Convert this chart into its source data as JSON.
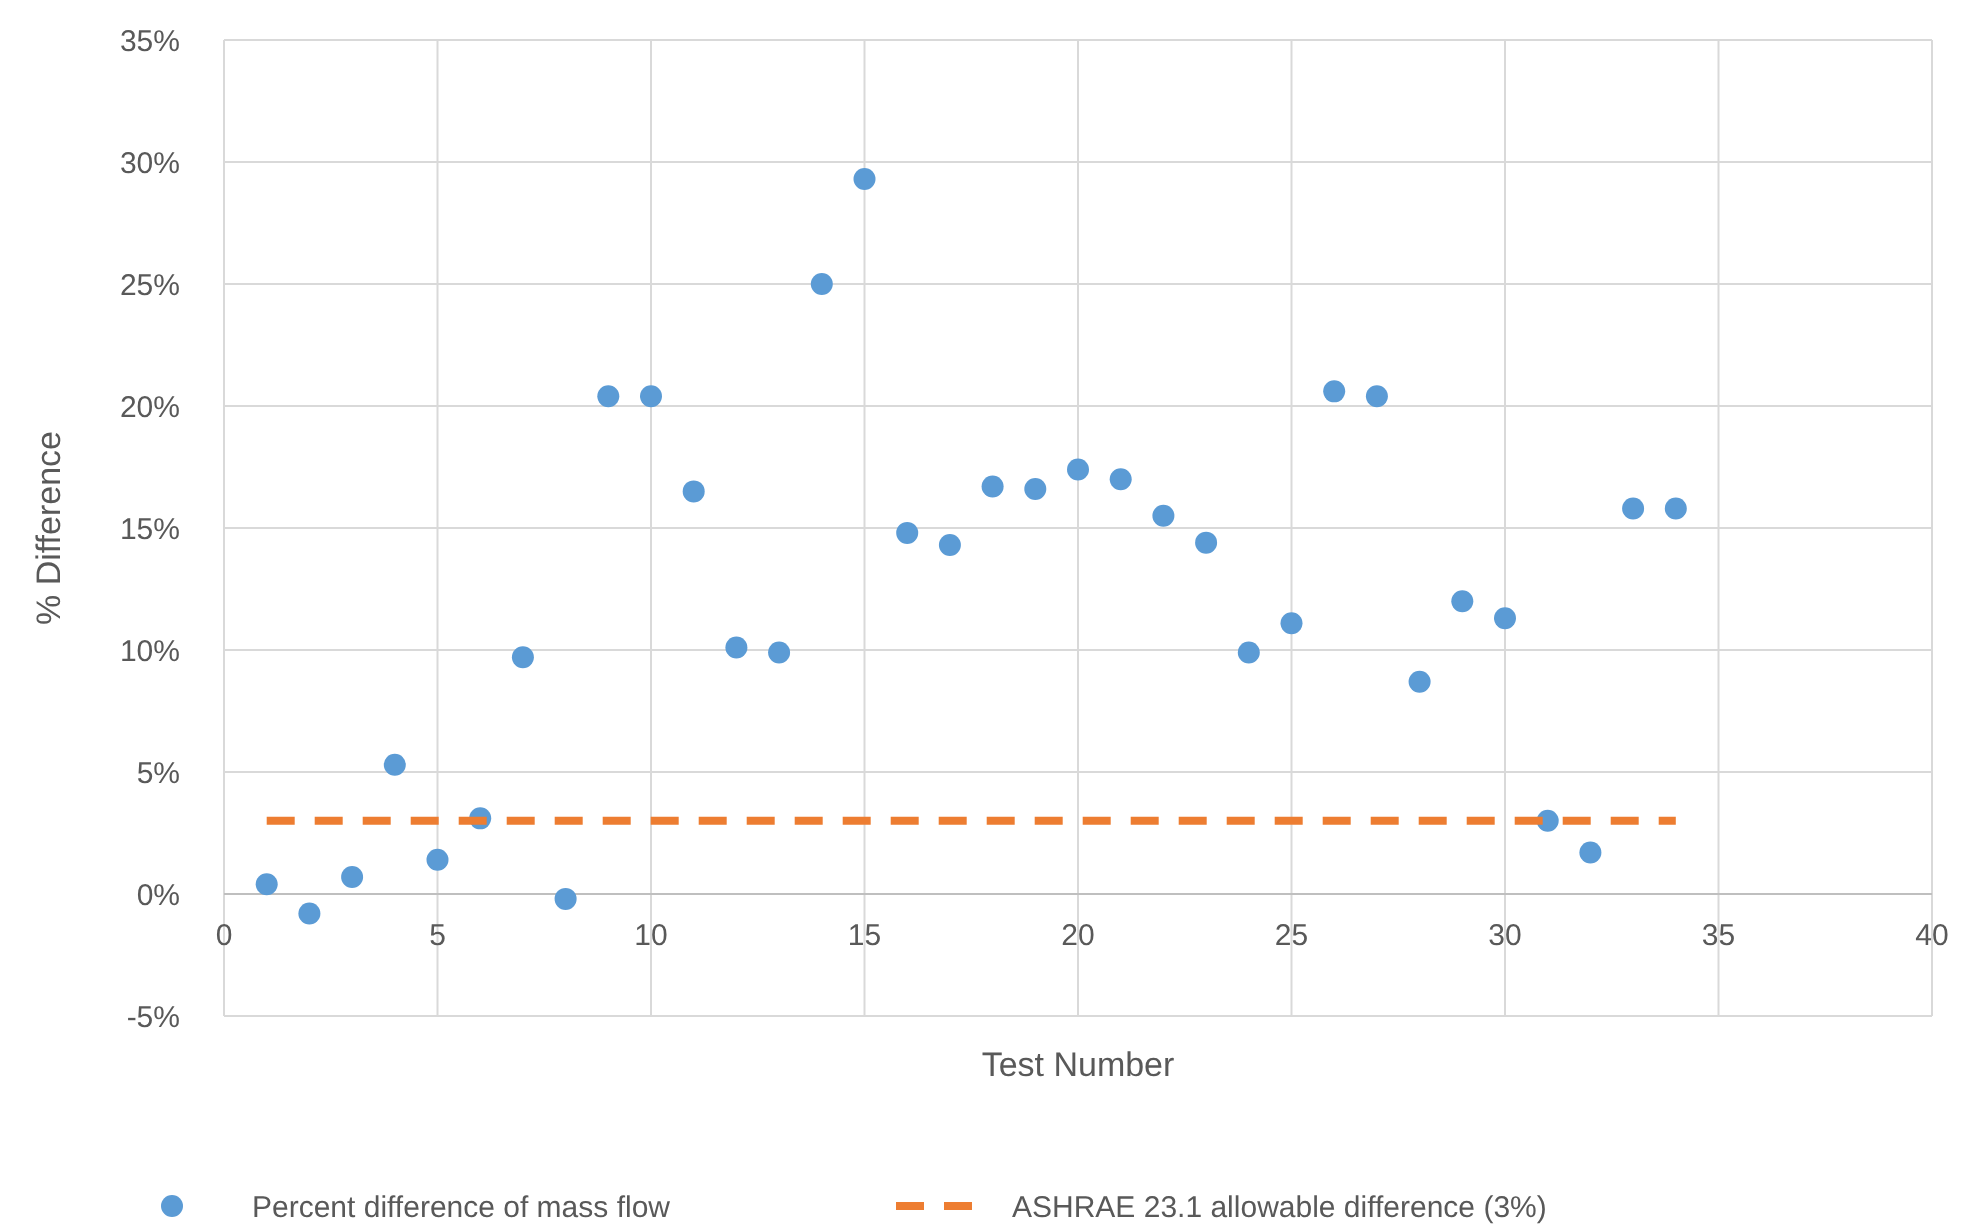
{
  "chart_data": {
    "type": "scatter",
    "xlabel": "Test Number",
    "ylabel": "% Difference",
    "xlim": [
      0,
      40
    ],
    "xticks": [
      0,
      5,
      10,
      15,
      20,
      25,
      30,
      35,
      40
    ],
    "ylim": [
      -5,
      35
    ],
    "yticks": [
      {
        "value": -5,
        "label": "-5%"
      },
      {
        "value": 0,
        "label": "0%"
      },
      {
        "value": 5,
        "label": "5%"
      },
      {
        "value": 10,
        "label": "10%"
      },
      {
        "value": 15,
        "label": "15%"
      },
      {
        "value": 20,
        "label": "20%"
      },
      {
        "value": 25,
        "label": "25%"
      },
      {
        "value": 30,
        "label": "30%"
      },
      {
        "value": 35,
        "label": "35%"
      }
    ],
    "grid": true,
    "legend": "bottom",
    "series": [
      {
        "name": "Percent difference of mass flow",
        "marker": "circle",
        "color": "#5b9bd5",
        "x": [
          1,
          2,
          3,
          4,
          5,
          6,
          7,
          8,
          9,
          10,
          11,
          12,
          13,
          14,
          15,
          16,
          17,
          18,
          19,
          20,
          21,
          22,
          23,
          24,
          25,
          26,
          27,
          28,
          29,
          30,
          31,
          32,
          33,
          34
        ],
        "values": [
          0.4,
          -0.8,
          0.7,
          5.3,
          1.4,
          3.1,
          9.7,
          -0.2,
          20.4,
          20.4,
          16.5,
          10.1,
          9.9,
          25.0,
          29.3,
          14.8,
          14.3,
          16.7,
          16.6,
          17.4,
          17.0,
          15.5,
          14.4,
          9.9,
          11.1,
          20.6,
          20.4,
          8.7,
          12.0,
          11.3,
          3.0,
          1.7,
          15.8,
          15.8
        ]
      },
      {
        "name": "ASHRAE 23.1 allowable difference (3%)",
        "type": "line",
        "line_style": "dashed",
        "color": "#ed7d31",
        "x": [
          1,
          34
        ],
        "values": [
          3,
          3
        ]
      }
    ]
  }
}
